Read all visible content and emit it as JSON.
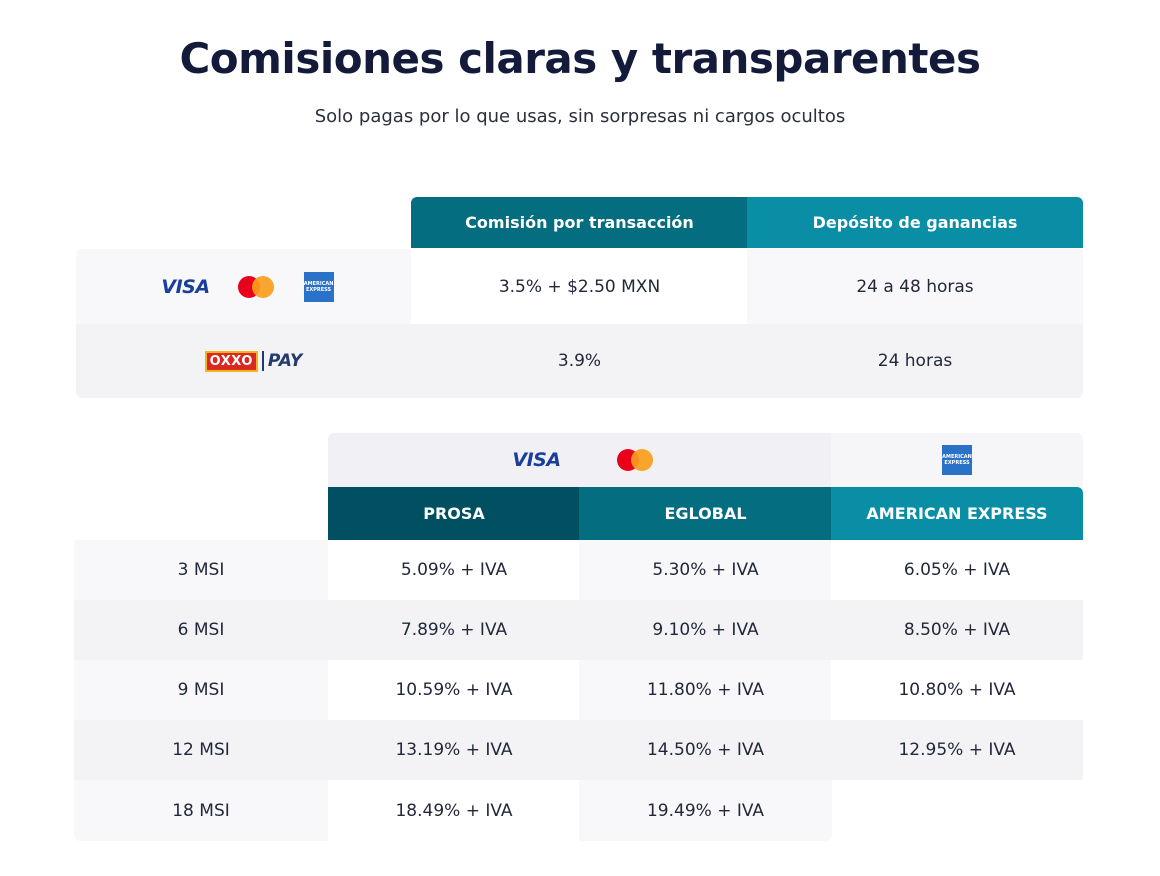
{
  "header": {
    "title": "Comisiones claras y transparentes",
    "subtitle": "Solo pagas por lo que usas, sin sorpresas ni cargos ocultos"
  },
  "logos": {
    "visa": "VISA",
    "amex_line1": "AMERICAN",
    "amex_line2": "EXPRESS",
    "oxxo": "OXXO",
    "pay": "PAY"
  },
  "colors": {
    "title": "#141b3a",
    "header_dark": "#005061",
    "header_mid": "#046e80",
    "header_light": "#0a8ea5"
  },
  "table1": {
    "headers": [
      "Comisión por transacción",
      "Depósito de ganancias"
    ],
    "rows": [
      {
        "method": "cards",
        "commission": "3.5% + $2.50 MXN",
        "deposit": "24 a 48 horas"
      },
      {
        "method": "oxxo-pay",
        "commission": "3.9%",
        "deposit": "24 horas"
      }
    ]
  },
  "table2": {
    "headers": [
      "PROSA",
      "EGLOBAL",
      "AMERICAN EXPRESS"
    ],
    "rows": [
      {
        "term": "3 MSI",
        "prosa": "5.09% + IVA",
        "eglobal": "5.30% + IVA",
        "amex": "6.05% + IVA"
      },
      {
        "term": "6 MSI",
        "prosa": "7.89% + IVA",
        "eglobal": "9.10% + IVA",
        "amex": "8.50% + IVA"
      },
      {
        "term": "9 MSI",
        "prosa": "10.59% + IVA",
        "eglobal": "11.80% + IVA",
        "amex": "10.80% + IVA"
      },
      {
        "term": "12 MSI",
        "prosa": "13.19% + IVA",
        "eglobal": "14.50% + IVA",
        "amex": "12.95% + IVA"
      },
      {
        "term": "18 MSI",
        "prosa": "18.49% + IVA",
        "eglobal": "19.49% + IVA",
        "amex": ""
      }
    ]
  }
}
